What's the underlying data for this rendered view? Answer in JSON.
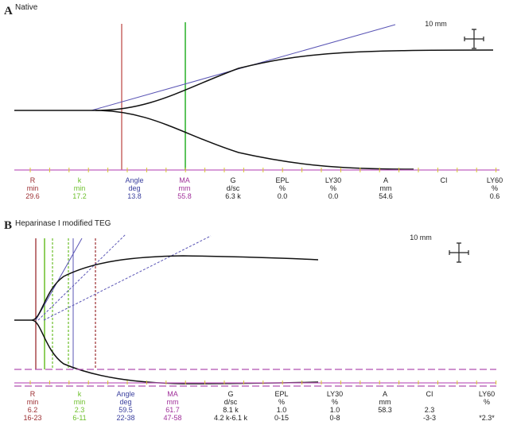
{
  "chart_data": [
    {
      "type": "line",
      "panel": "A",
      "title": "Native",
      "scale_label": "10 mm",
      "lines": {
        "R": "#c0504d",
        "MA": "#33b533",
        "tangent": "#5a55b5",
        "trace": "#111111"
      },
      "parameters": [
        {
          "name": "R",
          "unit": "min",
          "value": "29.6",
          "color": "#9b2d30"
        },
        {
          "name": "k",
          "unit": "min",
          "value": "17.2",
          "color": "#6cbf2a"
        },
        {
          "name": "Angle",
          "unit": "deg",
          "value": "13.8",
          "color": "#3a3f9e"
        },
        {
          "name": "MA",
          "unit": "mm",
          "value": "55.8",
          "color": "#a0309a"
        },
        {
          "name": "G",
          "unit": "d/sc",
          "value": "6.3 k",
          "color": "#222222"
        },
        {
          "name": "EPL",
          "unit": "%",
          "value": "0.0",
          "color": "#222222"
        },
        {
          "name": "LY30",
          "unit": "%",
          "value": "0.0",
          "color": "#222222"
        },
        {
          "name": "A",
          "unit": "mm",
          "value": "54.6",
          "color": "#222222"
        },
        {
          "name": "CI",
          "unit": "",
          "value": "",
          "color": "#222222"
        },
        {
          "name": "LY60",
          "unit": "%",
          "value": "0.6",
          "color": "#222222"
        }
      ]
    },
    {
      "type": "line",
      "panel": "B",
      "title": "Heparinase I modified TEG",
      "scale_label": "10 mm",
      "lines": {
        "R": "#9b2d30",
        "k": "#6cbf2a",
        "tangent": "#5a55b5",
        "ref_band": "#b050b0",
        "trace": "#111111"
      },
      "parameters": [
        {
          "name": "R",
          "unit": "min",
          "value": "6.2",
          "range": "16-23",
          "color": "#9b2d30"
        },
        {
          "name": "k",
          "unit": "min",
          "value": "2.3",
          "range": "6-11",
          "color": "#6cbf2a"
        },
        {
          "name": "Angle",
          "unit": "deg",
          "value": "59.5",
          "range": "22-38",
          "color": "#3a3f9e"
        },
        {
          "name": "MA",
          "unit": "mm",
          "value": "61.7",
          "range": "47-58",
          "color": "#a0309a"
        },
        {
          "name": "G",
          "unit": "d/sc",
          "value": "8.1 k",
          "range": "4.2 k-6.1 k",
          "color": "#222222"
        },
        {
          "name": "EPL",
          "unit": "%",
          "value": "1.0",
          "range": "0-15",
          "color": "#222222"
        },
        {
          "name": "LY30",
          "unit": "%",
          "value": "1.0",
          "range": "0-8",
          "color": "#222222"
        },
        {
          "name": "A",
          "unit": "mm",
          "value": "58.3",
          "range": "",
          "color": "#222222"
        },
        {
          "name": "CI",
          "unit": "",
          "value": "2.3",
          "range": "-3-3",
          "color": "#222222"
        },
        {
          "name": "LY60",
          "unit": "%",
          "value": "",
          "range": "*2.3*",
          "color": "#222222"
        }
      ]
    }
  ]
}
